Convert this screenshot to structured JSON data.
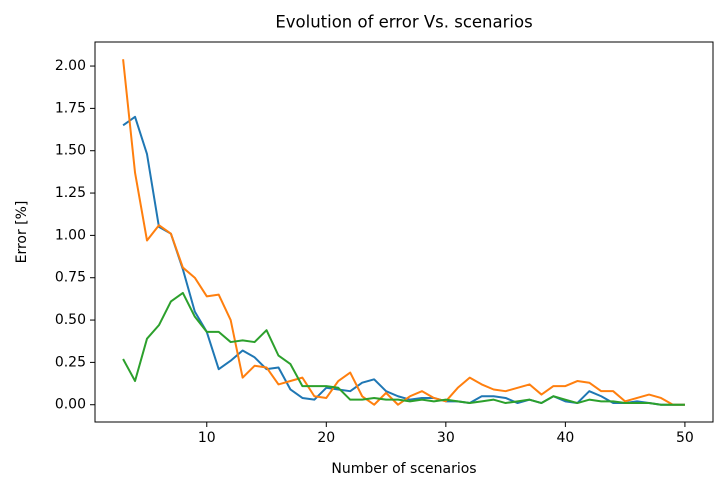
{
  "chart_data": {
    "type": "line",
    "title": "Evolution of error Vs. scenarios",
    "xlabel": "Number of scenarios",
    "ylabel": "Error [%]",
    "x": [
      3,
      4,
      5,
      6,
      7,
      8,
      9,
      10,
      11,
      12,
      13,
      14,
      15,
      16,
      17,
      18,
      19,
      20,
      21,
      22,
      23,
      24,
      25,
      26,
      27,
      28,
      29,
      30,
      31,
      32,
      33,
      34,
      35,
      36,
      37,
      38,
      39,
      40,
      41,
      42,
      43,
      44,
      45,
      46,
      47,
      48,
      49,
      50
    ],
    "series": [
      {
        "color": "#1f77b4",
        "values": [
          1.65,
          1.7,
          1.48,
          1.05,
          1.01,
          0.8,
          0.55,
          0.43,
          0.21,
          0.26,
          0.32,
          0.28,
          0.21,
          0.22,
          0.09,
          0.04,
          0.03,
          0.1,
          0.09,
          0.08,
          0.13,
          0.15,
          0.08,
          0.05,
          0.03,
          0.04,
          0.04,
          0.02,
          0.02,
          0.01,
          0.05,
          0.05,
          0.04,
          0.01,
          0.03,
          0.01,
          0.05,
          0.02,
          0.01,
          0.08,
          0.05,
          0.01,
          0.01,
          0.02,
          0.01,
          0.0,
          0.0,
          0.0
        ]
      },
      {
        "color": "#ff7f0e",
        "values": [
          2.04,
          1.37,
          0.97,
          1.06,
          1.01,
          0.81,
          0.75,
          0.64,
          0.65,
          0.5,
          0.16,
          0.23,
          0.22,
          0.12,
          0.14,
          0.16,
          0.05,
          0.04,
          0.14,
          0.19,
          0.05,
          0.0,
          0.07,
          0.0,
          0.05,
          0.08,
          0.04,
          0.02,
          0.1,
          0.16,
          0.12,
          0.09,
          0.08,
          0.1,
          0.12,
          0.06,
          0.11,
          0.11,
          0.14,
          0.13,
          0.08,
          0.08,
          0.02,
          0.04,
          0.06,
          0.04,
          0.0,
          0.0
        ]
      },
      {
        "color": "#2ca02c",
        "values": [
          0.27,
          0.14,
          0.39,
          0.47,
          0.61,
          0.66,
          0.52,
          0.43,
          0.43,
          0.37,
          0.38,
          0.37,
          0.44,
          0.29,
          0.24,
          0.11,
          0.11,
          0.11,
          0.1,
          0.03,
          0.03,
          0.04,
          0.03,
          0.03,
          0.02,
          0.03,
          0.02,
          0.03,
          0.02,
          0.01,
          0.02,
          0.03,
          0.01,
          0.02,
          0.03,
          0.01,
          0.05,
          0.03,
          0.01,
          0.03,
          0.02,
          0.02,
          0.01,
          0.01,
          0.01,
          0.0,
          0.0,
          0.0
        ]
      }
    ],
    "xlim": [
      0.65,
      52.35
    ],
    "ylim": [
      -0.102,
      2.142
    ],
    "xticks": [
      10,
      20,
      30,
      40,
      50
    ],
    "yticks": [
      {
        "value": 0,
        "label": "0.00"
      },
      {
        "value": 0.25,
        "label": "0.25"
      },
      {
        "value": 0.5,
        "label": "0.50"
      },
      {
        "value": 0.75,
        "label": "0.75"
      },
      {
        "value": 1,
        "label": "1.00"
      },
      {
        "value": 1.25,
        "label": "1.25"
      },
      {
        "value": 1.5,
        "label": "1.50"
      },
      {
        "value": 1.75,
        "label": "1.75"
      },
      {
        "value": 2,
        "label": "2.00"
      }
    ]
  }
}
